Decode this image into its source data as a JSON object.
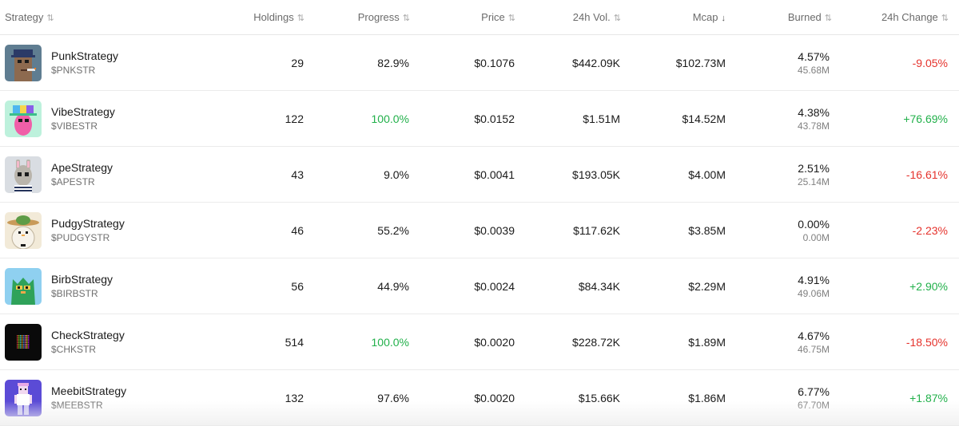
{
  "columns": {
    "strategy": "Strategy",
    "holdings": "Holdings",
    "progress": "Progress",
    "price": "Price",
    "vol": "24h Vol.",
    "mcap": "Mcap",
    "burned": "Burned",
    "change": "24h Change",
    "sort_icon": "⇅",
    "sort_active_icon": "↓"
  },
  "rows": [
    {
      "name": "PunkStrategy",
      "ticker": "$PNKSTR",
      "holdings": "29",
      "progress": "82.9%",
      "progress_full": false,
      "price": "$0.1076",
      "vol": "$442.09K",
      "mcap": "$102.73M",
      "burned_pct": "4.57%",
      "burned_amt": "45.68M",
      "change": "-9.05%",
      "change_dir": "neg",
      "avatar": "punk-avatar-icon"
    },
    {
      "name": "VibeStrategy",
      "ticker": "$VIBESTR",
      "holdings": "122",
      "progress": "100.0%",
      "progress_full": true,
      "price": "$0.0152",
      "vol": "$1.51M",
      "mcap": "$14.52M",
      "burned_pct": "4.38%",
      "burned_amt": "43.78M",
      "change": "+76.69%",
      "change_dir": "pos",
      "avatar": "vibe-avatar-icon"
    },
    {
      "name": "ApeStrategy",
      "ticker": "$APESTR",
      "holdings": "43",
      "progress": "9.0%",
      "progress_full": false,
      "price": "$0.0041",
      "vol": "$193.05K",
      "mcap": "$4.00M",
      "burned_pct": "2.51%",
      "burned_amt": "25.14M",
      "change": "-16.61%",
      "change_dir": "neg",
      "avatar": "ape-avatar-icon"
    },
    {
      "name": "PudgyStrategy",
      "ticker": "$PUDGYSTR",
      "holdings": "46",
      "progress": "55.2%",
      "progress_full": false,
      "price": "$0.0039",
      "vol": "$117.62K",
      "mcap": "$3.85M",
      "burned_pct": "0.00%",
      "burned_amt": "0.00M",
      "change": "-2.23%",
      "change_dir": "neg",
      "avatar": "pudgy-avatar-icon"
    },
    {
      "name": "BirbStrategy",
      "ticker": "$BIRBSTR",
      "holdings": "56",
      "progress": "44.9%",
      "progress_full": false,
      "price": "$0.0024",
      "vol": "$84.34K",
      "mcap": "$2.29M",
      "burned_pct": "4.91%",
      "burned_amt": "49.06M",
      "change": "+2.90%",
      "change_dir": "pos",
      "avatar": "birb-avatar-icon"
    },
    {
      "name": "CheckStrategy",
      "ticker": "$CHKSTR",
      "holdings": "514",
      "progress": "100.0%",
      "progress_full": true,
      "price": "$0.0020",
      "vol": "$228.72K",
      "mcap": "$1.89M",
      "burned_pct": "4.67%",
      "burned_amt": "46.75M",
      "change": "-18.50%",
      "change_dir": "neg",
      "avatar": "check-avatar-icon"
    },
    {
      "name": "MeebitStrategy",
      "ticker": "$MEEBSTR",
      "holdings": "132",
      "progress": "97.6%",
      "progress_full": false,
      "price": "$0.0020",
      "vol": "$15.66K",
      "mcap": "$1.86M",
      "burned_pct": "6.77%",
      "burned_amt": "67.70M",
      "change": "+1.87%",
      "change_dir": "pos",
      "avatar": "meebit-avatar-icon"
    }
  ],
  "colors": {
    "positive": "#21b04a",
    "negative": "#e5322c",
    "text": "#1a1a1a",
    "muted": "#6b6b6b"
  }
}
